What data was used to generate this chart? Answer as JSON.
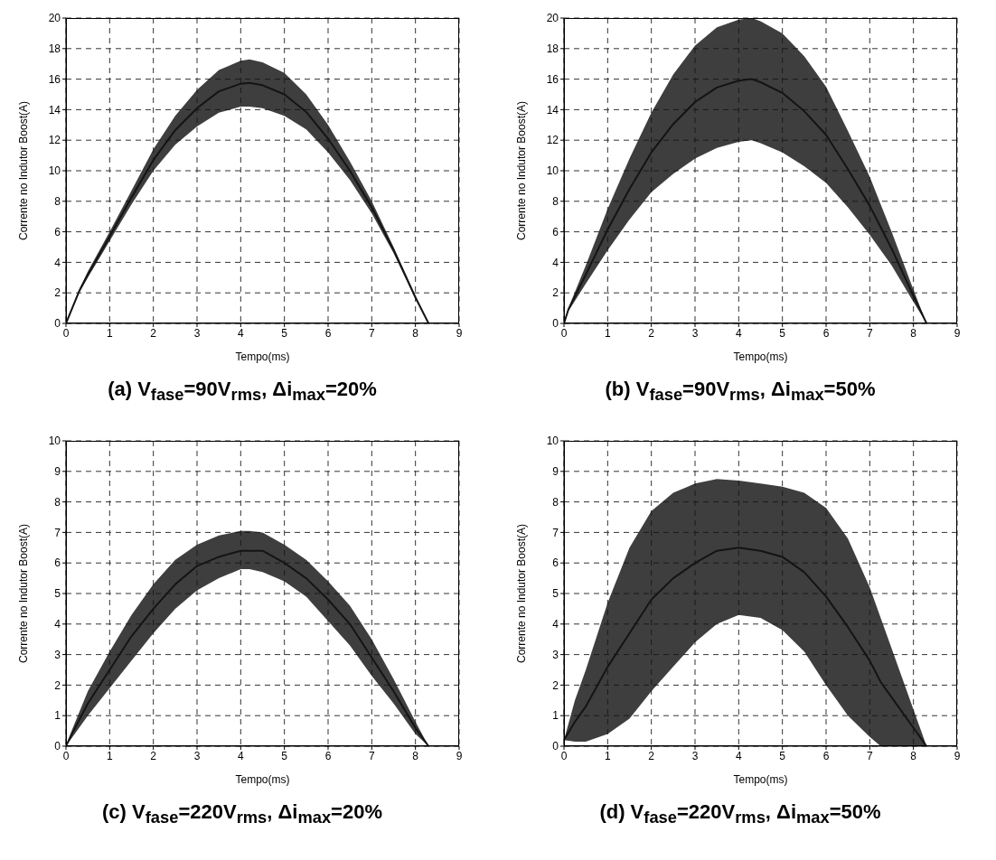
{
  "chart_data": [
    {
      "type": "line",
      "title": "(a) V$_{fase}$=90V$_{rms}$, Δi$_{max}$=20%",
      "xlabel": "Tempo(ms)",
      "ylabel": "Corrente no Indutor Boost(A)",
      "xlim": [
        0,
        9
      ],
      "xticks": [
        0,
        1,
        2,
        3,
        4,
        5,
        6,
        7,
        8,
        9
      ],
      "ylim": [
        0,
        20
      ],
      "yticks": [
        0,
        2,
        4,
        6,
        8,
        10,
        12,
        14,
        16,
        18,
        20
      ],
      "grid": true,
      "series": [
        {
          "color": "#141414",
          "x": [
            0,
            0.3,
            0.5,
            1,
            1.5,
            2,
            2.5,
            3,
            3.5,
            4,
            4.2,
            4.5,
            5,
            5.5,
            6,
            6.5,
            7,
            7.5,
            8,
            8.3
          ],
          "values": [
            0,
            2.1,
            3.2,
            5.7,
            8.25,
            10.7,
            12.65,
            14.1,
            15.2,
            15.7,
            15.75,
            15.6,
            15.0,
            13.85,
            12.1,
            10.0,
            7.6,
            4.8,
            1.7,
            0
          ],
          "lower": [
            0,
            2.0,
            3.0,
            5.4,
            7.8,
            10.0,
            11.7,
            12.9,
            13.8,
            14.2,
            14.2,
            14.1,
            13.6,
            12.7,
            11.2,
            9.4,
            7.2,
            4.6,
            1.6,
            0
          ],
          "upper": [
            0,
            2.2,
            3.4,
            6.0,
            8.7,
            11.4,
            13.6,
            15.3,
            16.6,
            17.2,
            17.3,
            17.1,
            16.4,
            15.0,
            13.0,
            10.6,
            8.0,
            5.0,
            1.8,
            0
          ]
        }
      ]
    },
    {
      "type": "line",
      "title": "(b) V$_{fase}$=90V$_{rms}$, Δi$_{max}$=50%",
      "xlabel": "Tempo(ms)",
      "ylabel": "Corrente no Indutor Boost(A)",
      "xlim": [
        0,
        9
      ],
      "xticks": [
        0,
        1,
        2,
        3,
        4,
        5,
        6,
        7,
        8,
        9
      ],
      "ylim": [
        0,
        20
      ],
      "yticks": [
        0,
        2,
        4,
        6,
        8,
        10,
        12,
        14,
        16,
        18,
        20
      ],
      "grid": true,
      "series": [
        {
          "color": "#141414",
          "x": [
            0,
            0.1,
            0.5,
            1,
            1.5,
            2,
            2.5,
            3,
            3.5,
            4,
            4.3,
            4.5,
            5,
            5.5,
            6,
            6.5,
            7,
            7.5,
            8,
            8.3
          ],
          "values": [
            0,
            0.9,
            3.2,
            6.15,
            8.8,
            11.2,
            13.05,
            14.5,
            15.45,
            15.9,
            16.0,
            15.8,
            15.1,
            13.9,
            12.35,
            10.1,
            7.7,
            4.9,
            1.8,
            0
          ],
          "lower": [
            0,
            0.8,
            2.6,
            4.8,
            6.8,
            8.6,
            9.8,
            10.8,
            11.5,
            11.9,
            12.0,
            11.8,
            11.2,
            10.3,
            9.2,
            7.6,
            5.8,
            3.8,
            1.4,
            0
          ],
          "upper": [
            0,
            1.0,
            3.8,
            7.5,
            10.8,
            13.8,
            16.3,
            18.2,
            19.4,
            19.9,
            20.0,
            19.8,
            19.0,
            17.5,
            15.5,
            12.6,
            9.6,
            6.0,
            2.2,
            0
          ]
        }
      ]
    },
    {
      "type": "line",
      "title": "(c) V$_{fase}$=220V$_{rms}$, Δi$_{max}$=20%",
      "xlabel": "Tempo(ms)",
      "ylabel": "Corrente no Indutor Boost(A)",
      "xlim": [
        0,
        9
      ],
      "xticks": [
        0,
        1,
        2,
        3,
        4,
        5,
        6,
        7,
        8,
        9
      ],
      "ylim": [
        0,
        10
      ],
      "yticks": [
        0,
        1,
        2,
        3,
        4,
        5,
        6,
        7,
        8,
        9,
        10
      ],
      "grid": true,
      "series": [
        {
          "color": "#141414",
          "x": [
            0,
            0.1,
            0.5,
            1,
            1.5,
            2,
            2.5,
            3,
            3.5,
            4,
            4.2,
            4.5,
            5,
            5.5,
            6,
            6.5,
            7,
            7.5,
            8,
            8.3
          ],
          "values": [
            0,
            0.3,
            1.4,
            2.5,
            3.6,
            4.5,
            5.3,
            5.9,
            6.2,
            6.4,
            6.4,
            6.4,
            6.0,
            5.5,
            4.8,
            4.0,
            2.9,
            1.8,
            0.6,
            0
          ],
          "lower": [
            0,
            0.2,
            1.0,
            1.9,
            2.8,
            3.7,
            4.5,
            5.1,
            5.5,
            5.8,
            5.8,
            5.7,
            5.4,
            4.9,
            4.1,
            3.3,
            2.3,
            1.4,
            0.4,
            0
          ],
          "upper": [
            0,
            0.4,
            1.8,
            3.1,
            4.3,
            5.3,
            6.1,
            6.6,
            6.9,
            7.05,
            7.05,
            7.0,
            6.6,
            6.1,
            5.4,
            4.6,
            3.5,
            2.2,
            0.8,
            0
          ]
        }
      ]
    },
    {
      "type": "line",
      "title": "(d) V$_{fase}$=220V$_{rms}$, Δi$_{max}$=50%",
      "xlabel": "Tempo(ms)",
      "ylabel": "Corrente no Indutor Boost(A)",
      "xlim": [
        0,
        9
      ],
      "xticks": [
        0,
        1,
        2,
        3,
        4,
        5,
        6,
        7,
        8,
        9
      ],
      "ylim": [
        0,
        10
      ],
      "yticks": [
        0,
        1,
        2,
        3,
        4,
        5,
        6,
        7,
        8,
        9,
        10
      ],
      "grid": true,
      "series": [
        {
          "color": "#141414",
          "x": [
            0,
            0.25,
            0.5,
            1,
            1.5,
            2,
            2.5,
            3,
            3.5,
            4,
            4.5,
            5,
            5.5,
            6,
            6.5,
            7,
            7.25,
            7.5,
            8,
            8.3
          ],
          "values": [
            0.2,
            0.8,
            1.3,
            2.6,
            3.7,
            4.8,
            5.5,
            6.0,
            6.4,
            6.5,
            6.4,
            6.2,
            5.7,
            4.9,
            3.9,
            2.8,
            2.1,
            1.6,
            0.6,
            0
          ],
          "lower": [
            0.2,
            0.15,
            0.15,
            0.4,
            0.9,
            1.8,
            2.6,
            3.4,
            4.0,
            4.3,
            4.2,
            3.8,
            3.1,
            2.0,
            1.0,
            0.3,
            0,
            0,
            0,
            0
          ],
          "upper": [
            0.2,
            1.5,
            2.5,
            4.7,
            6.5,
            7.7,
            8.3,
            8.6,
            8.75,
            8.7,
            8.6,
            8.5,
            8.3,
            7.8,
            6.8,
            5.2,
            4.2,
            3.2,
            1.2,
            0
          ]
        }
      ]
    }
  ]
}
